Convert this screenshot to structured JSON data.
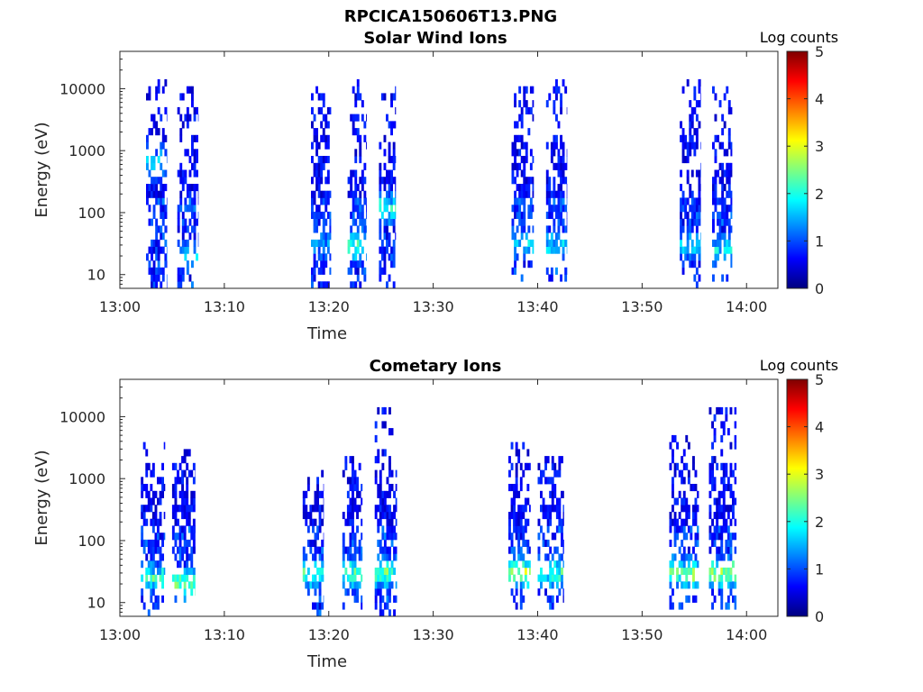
{
  "figure": {
    "title": "RPCICA150606T13.PNG"
  },
  "colormap": [
    "#00007f",
    "#0000ff",
    "#007fff",
    "#00ffff",
    "#7fff7f",
    "#ffff00",
    "#ff7f00",
    "#ff0000",
    "#7f0000"
  ],
  "chart_data": [
    {
      "type": "heatmap",
      "title": "Solar Wind Ions",
      "xlabel": "Time",
      "ylabel": "Energy (eV)",
      "yscale": "log",
      "xlim": [
        "13:00",
        "14:03"
      ],
      "ylim": [
        6,
        40000
      ],
      "x_ticks": [
        "13:00",
        "13:10",
        "13:20",
        "13:30",
        "13:40",
        "13:50",
        "14:00"
      ],
      "y_ticks": [
        "10",
        "100",
        "1000",
        "10000"
      ],
      "y_tick_values": [
        10,
        100,
        1000,
        10000
      ],
      "colorbar": {
        "title": "Log counts",
        "range": [
          0,
          5
        ],
        "ticks": [
          "0",
          "1",
          "2",
          "3",
          "4",
          "5"
        ]
      },
      "bursts": [
        {
          "start": "13:02.5",
          "end": "13:04.5",
          "emax": 15000,
          "emin": 6,
          "low_energy": 8,
          "peak_energy": 600,
          "peak_log_counts": 2.0
        },
        {
          "start": "13:05.5",
          "end": "13:07.5",
          "emax": 12000,
          "emin": 6,
          "low_energy": 20,
          "peak_energy": 20,
          "peak_log_counts": 1.8
        },
        {
          "start": "13:18.3",
          "end": "13:20.2",
          "emax": 12000,
          "emin": 6,
          "low_energy": 10,
          "peak_energy": 30,
          "peak_log_counts": 1.5
        },
        {
          "start": "13:21.8",
          "end": "13:23.6",
          "emax": 15000,
          "emin": 6,
          "low_energy": 10,
          "peak_energy": 30,
          "peak_log_counts": 2.6
        },
        {
          "start": "13:24.8",
          "end": "13:26.4",
          "emax": 12000,
          "emin": 6,
          "low_energy": 10,
          "peak_energy": 120,
          "peak_log_counts": 2.4
        },
        {
          "start": "13:37.5",
          "end": "13:39.6",
          "emax": 12000,
          "emin": 8,
          "low_energy": 20,
          "peak_energy": 30,
          "peak_log_counts": 1.9
        },
        {
          "start": "13:40.8",
          "end": "13:42.8",
          "emax": 15000,
          "emin": 8,
          "low_energy": 20,
          "peak_energy": 30,
          "peak_log_counts": 1.8
        },
        {
          "start": "13:53.6",
          "end": "13:55.6",
          "emax": 15000,
          "emin": 6,
          "low_energy": 15,
          "peak_energy": 30,
          "peak_log_counts": 1.9
        },
        {
          "start": "13:56.7",
          "end": "13:58.6",
          "emax": 10000,
          "emin": 8,
          "low_energy": 20,
          "peak_energy": 25,
          "peak_log_counts": 1.9
        }
      ]
    },
    {
      "type": "heatmap",
      "title": "Cometary Ions",
      "xlabel": "Time",
      "ylabel": "Energy (eV)",
      "yscale": "log",
      "xlim": [
        "13:00",
        "14:03"
      ],
      "ylim": [
        6,
        40000
      ],
      "x_ticks": [
        "13:00",
        "13:10",
        "13:20",
        "13:30",
        "13:40",
        "13:50",
        "14:00"
      ],
      "y_ticks": [
        "10",
        "100",
        "1000",
        "10000"
      ],
      "y_tick_values": [
        10,
        100,
        1000,
        10000
      ],
      "colorbar": {
        "title": "Log counts",
        "range": [
          0,
          5
        ],
        "ticks": [
          "0",
          "1",
          "2",
          "3",
          "4",
          "5"
        ]
      },
      "bursts": [
        {
          "start": "13:02",
          "end": "13:04.3",
          "emax": 4000,
          "emin": 6,
          "low_energy": 15,
          "peak_energy": 25,
          "peak_log_counts": 2.4
        },
        {
          "start": "13:05",
          "end": "13:07.2",
          "emax": 3500,
          "emin": 8,
          "low_energy": 15,
          "peak_energy": 20,
          "peak_log_counts": 2.9
        },
        {
          "start": "13:17.5",
          "end": "13:19.5",
          "emax": 1500,
          "emin": 6,
          "low_energy": 15,
          "peak_energy": 30,
          "peak_log_counts": 2.4
        },
        {
          "start": "13:21.3",
          "end": "13:23.2",
          "emax": 2500,
          "emin": 8,
          "low_energy": 15,
          "peak_energy": 30,
          "peak_log_counts": 2.6
        },
        {
          "start": "13:24.4",
          "end": "13:26.5",
          "emax": 16000,
          "emin": 6,
          "low_energy": 15,
          "peak_energy": 30,
          "peak_log_counts": 2.8
        },
        {
          "start": "13:37.2",
          "end": "13:39.3",
          "emax": 4000,
          "emin": 8,
          "low_energy": 20,
          "peak_energy": 30,
          "peak_log_counts": 3.3
        },
        {
          "start": "13:40",
          "end": "13:42.5",
          "emax": 2500,
          "emin": 8,
          "low_energy": 15,
          "peak_energy": 30,
          "peak_log_counts": 2.4
        },
        {
          "start": "13:52.6",
          "end": "13:55.4",
          "emax": 5000,
          "emin": 8,
          "low_energy": 15,
          "peak_energy": 30,
          "peak_log_counts": 2.9
        },
        {
          "start": "13:56.4",
          "end": "13:59",
          "emax": 16000,
          "emin": 8,
          "low_energy": 15,
          "peak_energy": 30,
          "peak_log_counts": 3.0
        }
      ]
    }
  ]
}
